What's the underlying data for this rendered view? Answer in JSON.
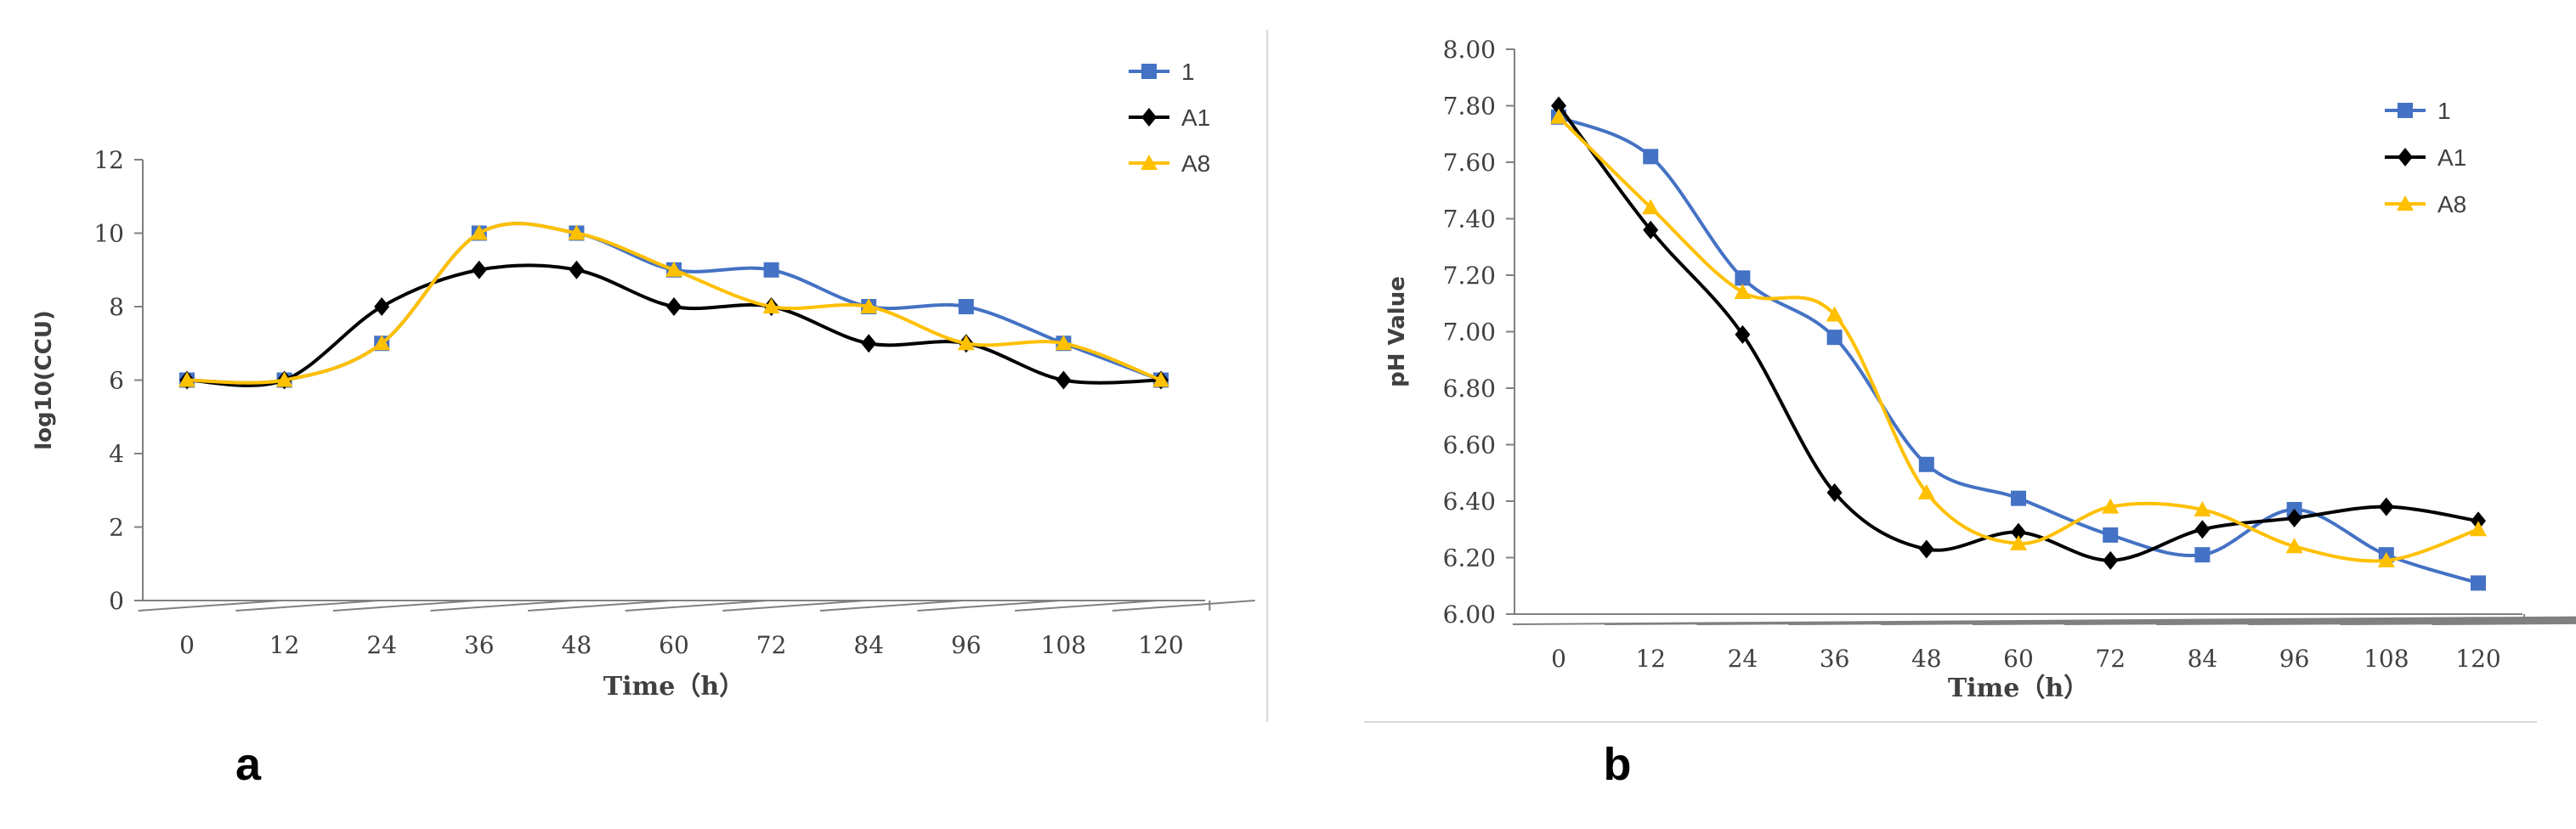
{
  "chart_data": [
    {
      "type": "line",
      "panel_label": "a",
      "title": "",
      "xlabel": "Time（h）",
      "ylabel": "log10(CCU)",
      "categories": [
        "0",
        "12",
        "24",
        "36",
        "48",
        "60",
        "72",
        "84",
        "96",
        "108",
        "120"
      ],
      "ylim": [
        0,
        12
      ],
      "yticks": [
        "0",
        "2",
        "4",
        "6",
        "8",
        "10",
        "12"
      ],
      "grid": false,
      "smooth": true,
      "legend_position": "top-right",
      "series": [
        {
          "name": "1",
          "color": "#4472C4",
          "marker": "square",
          "values": [
            6,
            6,
            7,
            10,
            10,
            9,
            9,
            8,
            8,
            7,
            6
          ]
        },
        {
          "name": "A1",
          "color": "#000000",
          "marker": "diamond",
          "values": [
            6,
            6,
            8,
            9,
            9,
            8,
            8,
            7,
            7,
            6,
            6
          ]
        },
        {
          "name": "A8",
          "color": "#FFC000",
          "marker": "triangle",
          "values": [
            6,
            6,
            7,
            10,
            10,
            9,
            8,
            8,
            7,
            7,
            6
          ]
        }
      ]
    },
    {
      "type": "line",
      "panel_label": "b",
      "title": "",
      "xlabel": "Time（h）",
      "ylabel": "pH Value",
      "categories": [
        "0",
        "12",
        "24",
        "36",
        "48",
        "60",
        "72",
        "84",
        "96",
        "108",
        "120"
      ],
      "ylim": [
        6.0,
        8.0
      ],
      "yticks": [
        "6.00",
        "6.20",
        "6.40",
        "6.60",
        "6.80",
        "7.00",
        "7.20",
        "7.40",
        "7.60",
        "7.80",
        "8.00"
      ],
      "grid": false,
      "smooth": true,
      "legend_position": "top-right",
      "series": [
        {
          "name": "1",
          "color": "#4472C4",
          "marker": "square",
          "values": [
            7.76,
            7.62,
            7.19,
            6.98,
            6.53,
            6.41,
            6.28,
            6.21,
            6.37,
            6.21,
            6.11
          ]
        },
        {
          "name": "A1",
          "color": "#000000",
          "marker": "diamond",
          "values": [
            7.8,
            7.36,
            6.99,
            6.43,
            6.23,
            6.29,
            6.19,
            6.3,
            6.34,
            6.38,
            6.33
          ]
        },
        {
          "name": "A8",
          "color": "#FFC000",
          "marker": "triangle",
          "values": [
            7.76,
            7.44,
            7.14,
            7.06,
            6.43,
            6.25,
            6.38,
            6.37,
            6.24,
            6.19,
            6.3
          ]
        }
      ]
    }
  ]
}
